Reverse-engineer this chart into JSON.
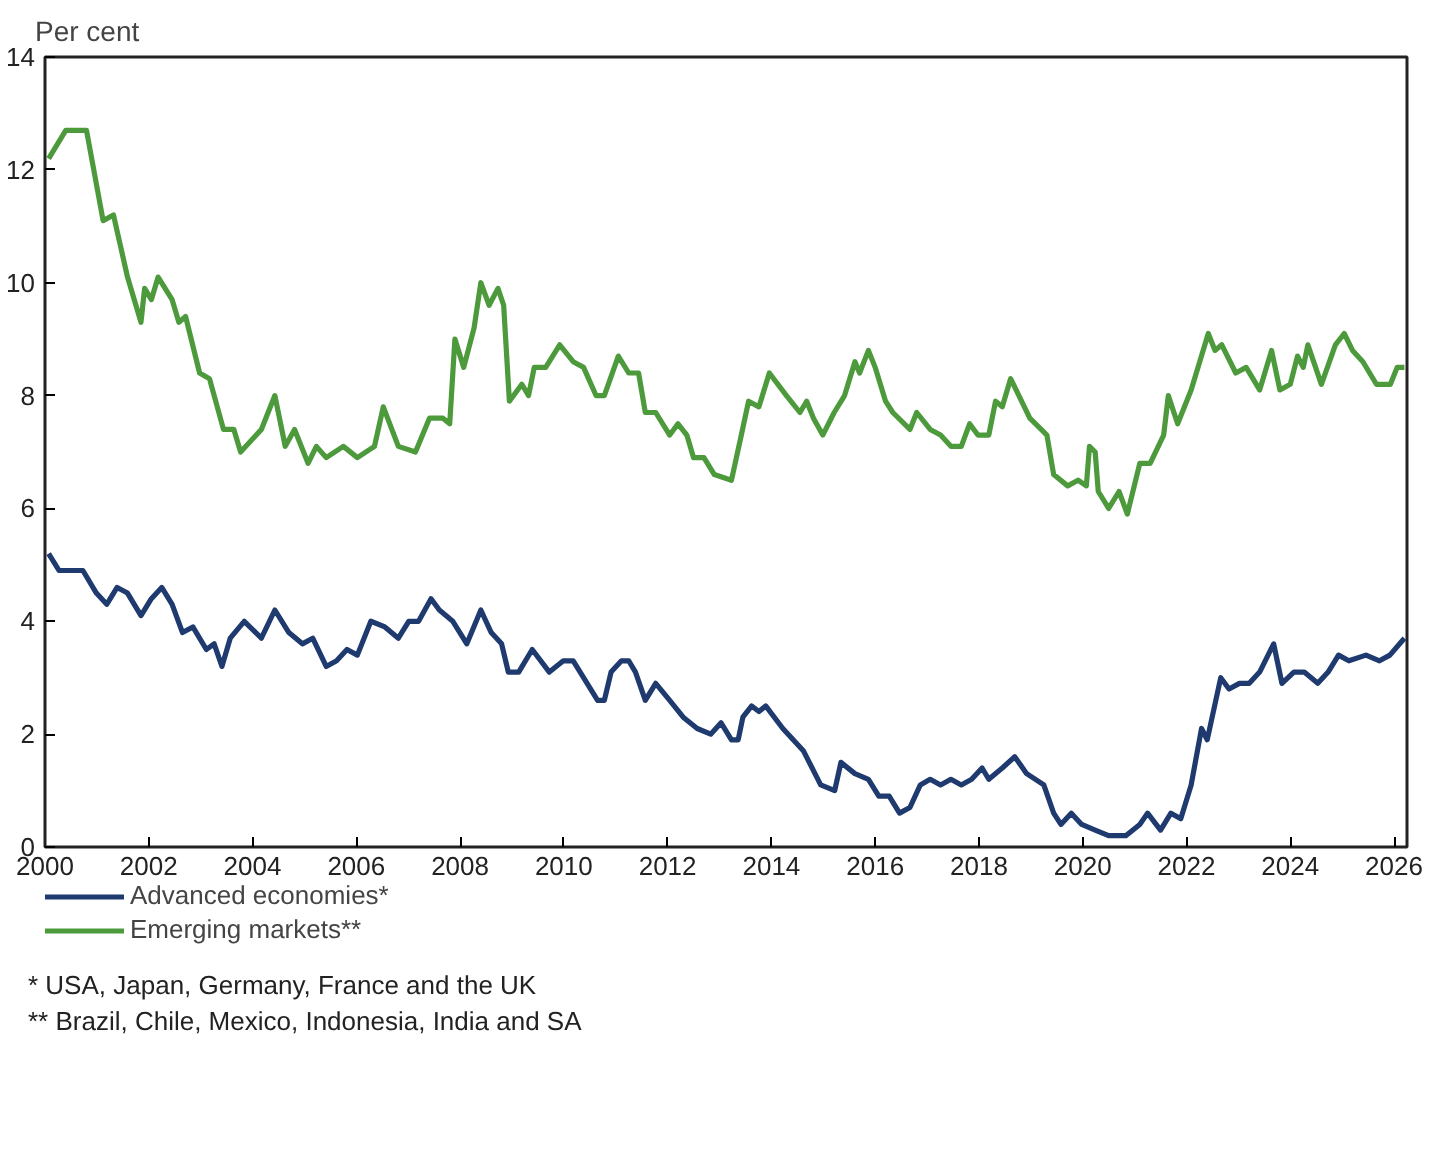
{
  "chart_data": {
    "type": "line",
    "ylabel": "Per cent",
    "xlim": [
      2000,
      2026.25
    ],
    "ylim": [
      0,
      14
    ],
    "xticks": [
      2000,
      2002,
      2004,
      2006,
      2008,
      2010,
      2012,
      2014,
      2016,
      2018,
      2020,
      2022,
      2024,
      2026
    ],
    "yticks": [
      0,
      2,
      4,
      6,
      8,
      10,
      12,
      14
    ],
    "grid": false,
    "legend": "bottom",
    "annotations": [
      "* USA, Japan, Germany, France and the UK",
      "** Brazil, Chile, Mexico, Indonesia, India and SA"
    ],
    "series": [
      {
        "name": "Advanced economies*",
        "color": "#1f3a6e",
        "x": [
          2000.07,
          2000.27,
          2000.4,
          2000.53,
          2000.73,
          2000.99,
          2001.19,
          2001.39,
          2001.59,
          2001.85,
          2002.05,
          2002.25,
          2002.45,
          2002.65,
          2002.85,
          2003.11,
          2003.26,
          2003.41,
          2003.57,
          2003.84,
          2004.17,
          2004.43,
          2004.7,
          2004.96,
          2005.16,
          2005.42,
          2005.62,
          2005.82,
          2006.02,
          2006.28,
          2006.55,
          2006.81,
          2007.01,
          2007.2,
          2007.44,
          2007.6,
          2007.86,
          2008.13,
          2008.4,
          2008.6,
          2008.8,
          2008.93,
          2009.13,
          2009.39,
          2009.72,
          2009.99,
          2010.18,
          2010.38,
          2010.65,
          2010.78,
          2010.91,
          2011.11,
          2011.25,
          2011.38,
          2011.57,
          2011.77,
          2012.04,
          2012.3,
          2012.57,
          2012.83,
          2013.03,
          2013.23,
          2013.36,
          2013.45,
          2013.62,
          2013.76,
          2013.89,
          2014.22,
          2014.62,
          2014.95,
          2015.22,
          2015.34,
          2015.61,
          2015.87,
          2016.07,
          2016.27,
          2016.47,
          2016.67,
          2016.87,
          2017.06,
          2017.26,
          2017.46,
          2017.66,
          2017.86,
          2018.06,
          2018.19,
          2018.45,
          2018.69,
          2018.92,
          2019.25,
          2019.44,
          2019.58,
          2019.78,
          2019.98,
          2020.24,
          2020.5,
          2020.83,
          2021.1,
          2021.25,
          2021.5,
          2021.7,
          2021.89,
          2022.09,
          2022.29,
          2022.4,
          2022.66,
          2022.82,
          2023.02,
          2023.21,
          2023.41,
          2023.68,
          2023.84,
          2024.07,
          2024.27,
          2024.53,
          2024.73,
          2024.93,
          2025.13,
          2025.46,
          2025.72,
          2025.92,
          2026.2
        ],
        "values": [
          5.2,
          4.9,
          4.9,
          4.9,
          4.9,
          4.5,
          4.3,
          4.6,
          4.5,
          4.1,
          4.4,
          4.6,
          4.3,
          3.8,
          3.9,
          3.5,
          3.6,
          3.2,
          3.7,
          4.0,
          3.7,
          4.2,
          3.8,
          3.6,
          3.7,
          3.2,
          3.3,
          3.5,
          3.4,
          4.0,
          3.9,
          3.7,
          4.0,
          4.0,
          4.4,
          4.2,
          4.0,
          3.6,
          4.2,
          3.8,
          3.6,
          3.1,
          3.1,
          3.5,
          3.1,
          3.3,
          3.3,
          3.0,
          2.6,
          2.6,
          3.1,
          3.3,
          3.3,
          3.1,
          2.6,
          2.9,
          2.6,
          2.3,
          2.1,
          2.0,
          2.2,
          1.9,
          1.9,
          2.3,
          2.5,
          2.4,
          2.5,
          2.1,
          1.7,
          1.1,
          1.0,
          1.5,
          1.3,
          1.2,
          0.9,
          0.9,
          0.6,
          0.7,
          1.1,
          1.2,
          1.1,
          1.2,
          1.1,
          1.2,
          1.4,
          1.2,
          1.4,
          1.6,
          1.3,
          1.1,
          0.6,
          0.4,
          0.6,
          0.4,
          0.3,
          0.2,
          0.2,
          0.4,
          0.6,
          0.3,
          0.6,
          0.5,
          1.1,
          2.1,
          1.9,
          3.0,
          2.8,
          2.9,
          2.9,
          3.1,
          3.6,
          2.9,
          3.1,
          3.1,
          2.9,
          3.1,
          3.4,
          3.3,
          3.4,
          3.3,
          3.4,
          3.7
        ]
      },
      {
        "name": "Emerging markets**",
        "color": "#4c9a3c",
        "x": [
          2000.07,
          2000.4,
          2000.8,
          2001.12,
          2001.32,
          2001.59,
          2001.85,
          2001.92,
          2002.05,
          2002.18,
          2002.45,
          2002.58,
          2002.71,
          2002.98,
          2003.17,
          2003.44,
          2003.64,
          2003.77,
          2004.17,
          2004.43,
          2004.63,
          2004.81,
          2005.07,
          2005.23,
          2005.42,
          2005.75,
          2006.02,
          2006.35,
          2006.52,
          2006.81,
          2007.14,
          2007.41,
          2007.67,
          2007.8,
          2007.9,
          2008.07,
          2008.27,
          2008.4,
          2008.56,
          2008.73,
          2008.84,
          2008.95,
          2009.19,
          2009.32,
          2009.43,
          2009.65,
          2009.92,
          2010.18,
          2010.38,
          2010.62,
          2010.78,
          2011.05,
          2011.25,
          2011.44,
          2011.57,
          2011.77,
          2012.04,
          2012.2,
          2012.37,
          2012.5,
          2012.7,
          2012.9,
          2013.23,
          2013.42,
          2013.56,
          2013.76,
          2013.96,
          2014.29,
          2014.55,
          2014.68,
          2014.81,
          2014.99,
          2015.21,
          2015.41,
          2015.61,
          2015.7,
          2015.87,
          2016.0,
          2016.2,
          2016.34,
          2016.67,
          2016.8,
          2017.06,
          2017.26,
          2017.46,
          2017.66,
          2017.82,
          2017.98,
          2018.19,
          2018.32,
          2018.45,
          2018.61,
          2018.77,
          2018.98,
          2019.31,
          2019.44,
          2019.71,
          2019.91,
          2020.07,
          2020.13,
          2020.24,
          2020.3,
          2020.5,
          2020.7,
          2020.86,
          2021.1,
          2021.3,
          2021.56,
          2021.65,
          2021.83,
          2022.09,
          2022.42,
          2022.55,
          2022.68,
          2022.95,
          2023.15,
          2023.41,
          2023.64,
          2023.8,
          2024.0,
          2024.14,
          2024.25,
          2024.34,
          2024.6,
          2024.87,
          2025.04,
          2025.2,
          2025.4,
          2025.66,
          2025.93,
          2026.06,
          2026.2
        ],
        "values": [
          12.2,
          12.7,
          12.7,
          11.1,
          11.2,
          10.1,
          9.3,
          9.9,
          9.7,
          10.1,
          9.7,
          9.3,
          9.4,
          8.4,
          8.3,
          7.4,
          7.4,
          7.0,
          7.4,
          8.0,
          7.1,
          7.4,
          6.8,
          7.1,
          6.9,
          7.1,
          6.9,
          7.1,
          7.8,
          7.1,
          7.0,
          7.6,
          7.6,
          7.5,
          9.0,
          8.5,
          9.2,
          10.0,
          9.6,
          9.9,
          9.6,
          7.9,
          8.2,
          8.0,
          8.5,
          8.5,
          8.9,
          8.6,
          8.5,
          8.0,
          8.0,
          8.7,
          8.4,
          8.4,
          7.7,
          7.7,
          7.3,
          7.5,
          7.3,
          6.9,
          6.9,
          6.6,
          6.5,
          7.3,
          7.9,
          7.8,
          8.4,
          8.0,
          7.7,
          7.9,
          7.6,
          7.3,
          7.7,
          8.0,
          8.6,
          8.4,
          8.8,
          8.5,
          7.9,
          7.7,
          7.4,
          7.7,
          7.4,
          7.3,
          7.1,
          7.1,
          7.5,
          7.3,
          7.3,
          7.9,
          7.8,
          8.3,
          8.0,
          7.6,
          7.3,
          6.6,
          6.4,
          6.5,
          6.4,
          7.1,
          7.0,
          6.3,
          6.0,
          6.3,
          5.9,
          6.8,
          6.8,
          7.3,
          8.0,
          7.5,
          8.1,
          9.1,
          8.8,
          8.9,
          8.4,
          8.5,
          8.1,
          8.8,
          8.1,
          8.2,
          8.7,
          8.5,
          8.9,
          8.2,
          8.9,
          9.1,
          8.8,
          8.6,
          8.2,
          8.2,
          8.5,
          8.5
        ]
      }
    ]
  }
}
